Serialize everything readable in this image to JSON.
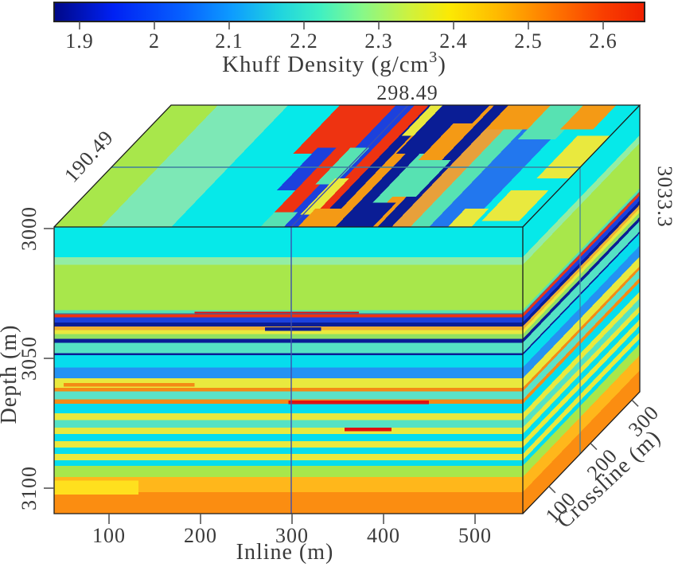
{
  "figure": {
    "background": "#ffffff"
  },
  "colorbar": {
    "title_main": "Khuff Density (g/cm",
    "title_sup": "3",
    "title_end": ")",
    "ticks": [
      "1.9",
      "2",
      "2.1",
      "2.2",
      "2.3",
      "2.4",
      "2.5",
      "2.6"
    ],
    "gradient": [
      [
        0.0,
        "#000887"
      ],
      [
        0.1,
        "#0021f3"
      ],
      [
        0.22,
        "#0762ff"
      ],
      [
        0.3,
        "#0d9bff"
      ],
      [
        0.38,
        "#1fd3e0"
      ],
      [
        0.45,
        "#3ff0c3"
      ],
      [
        0.52,
        "#85f88b"
      ],
      [
        0.6,
        "#cdf23f"
      ],
      [
        0.67,
        "#fce903"
      ],
      [
        0.75,
        "#ffba00"
      ],
      [
        0.84,
        "#ff7a00"
      ],
      [
        0.93,
        "#f93e00"
      ],
      [
        1.0,
        "#ef2000"
      ]
    ]
  },
  "annotations": {
    "inline_slice": "298.49",
    "crossline_slice": "190.49",
    "depth_slice": "3033.3",
    "color": "#4d55dd"
  },
  "axes": {
    "depth": {
      "label": "Depth (m)",
      "ticks": [
        "3000",
        "3050",
        "3100"
      ]
    },
    "inline": {
      "label": "Inline (m)",
      "ticks": [
        "100",
        "200",
        "300",
        "400",
        "500"
      ]
    },
    "crossline": {
      "label": "Crossline (m)",
      "ticks": [
        "100",
        "200",
        "300"
      ]
    }
  },
  "chart_data": {
    "type": "heatmap",
    "subtype": "3d-volume-cube-slices",
    "title": "Khuff Density (g/cm3)",
    "colormap": "jet",
    "legend_position": "top",
    "grid": false,
    "colorbar_range": [
      1.87,
      2.65
    ],
    "colorbar_ticks": [
      1.9,
      2,
      2.1,
      2.2,
      2.3,
      2.4,
      2.5,
      2.6
    ],
    "axis_ranges": {
      "depth_m": [
        3000,
        3110
      ],
      "inline_m": [
        40,
        550
      ],
      "crossline_m": [
        37,
        319
      ]
    },
    "axis_ticks": {
      "depth_m": [
        3000,
        3050,
        3100
      ],
      "inline_m": [
        100,
        200,
        300,
        400,
        500
      ],
      "crossline_m": [
        100,
        200,
        300
      ]
    },
    "slice_markers": {
      "inline_m": 298.49,
      "crossline_m": 190.49,
      "depth_m": 3033.3
    },
    "faces": {
      "front": {
        "stripe_axis": "depth",
        "stripes": [
          [
            0.0,
            "#06e9e9"
          ],
          [
            0.105,
            "#93eda4"
          ],
          [
            0.132,
            "#a8e74b"
          ],
          [
            0.29,
            "#57e2b2"
          ],
          [
            0.301,
            "#ee3311"
          ],
          [
            0.315,
            "#1c41dd"
          ],
          [
            0.333,
            "#0a1d95"
          ],
          [
            0.347,
            "#f0b032"
          ],
          [
            0.36,
            "#e9e93e"
          ],
          [
            0.374,
            "#8fe164"
          ],
          [
            0.39,
            "#0a1d95"
          ],
          [
            0.404,
            "#55e2c4"
          ],
          [
            0.44,
            "#0a1d95"
          ],
          [
            0.447,
            "#06dded"
          ],
          [
            0.49,
            "#2492f2"
          ],
          [
            0.528,
            "#e9e93e"
          ],
          [
            0.561,
            "#f48b15"
          ],
          [
            0.573,
            "#5ae2c9"
          ],
          [
            0.602,
            "#f48b15"
          ],
          [
            0.617,
            "#06dded"
          ],
          [
            0.65,
            "#e9e93e"
          ],
          [
            0.674,
            "#55e2c4"
          ],
          [
            0.7,
            "#e9e93e"
          ],
          [
            0.722,
            "#06dded"
          ],
          [
            0.747,
            "#e9e93e"
          ],
          [
            0.769,
            "#06dded"
          ],
          [
            0.792,
            "#e9e93e"
          ],
          [
            0.814,
            "#06dded"
          ],
          [
            0.833,
            "#a8e74b"
          ],
          [
            0.872,
            "#ffb71b"
          ],
          [
            0.925,
            "#fb8d11"
          ],
          [
            1.0,
            null
          ]
        ],
        "patches": [
          [
            0.5,
            0.605,
            0.3,
            0.013,
            "#e01010"
          ],
          [
            0.45,
            0.35,
            0.12,
            0.013,
            "#0a1d95"
          ],
          [
            0.02,
            0.545,
            0.28,
            0.012,
            "#f48b15"
          ],
          [
            0.62,
            0.7,
            0.1,
            0.012,
            "#e01010"
          ],
          [
            0.0,
            0.885,
            0.18,
            0.048,
            "#ffe01e"
          ],
          [
            0.3,
            0.296,
            0.35,
            0.01,
            "#e01010"
          ]
        ]
      },
      "top": {
        "stripe_axis": "inline",
        "stripes": [
          [
            0.0,
            "#a8e74b"
          ],
          [
            0.1,
            "#7de8b6"
          ],
          [
            0.25,
            "#06e9e9"
          ],
          [
            0.44,
            "#ee3311"
          ],
          [
            0.48,
            "#1c41dd"
          ],
          [
            0.52,
            "#ee3311"
          ],
          [
            0.55,
            "#0a1d95"
          ],
          [
            0.575,
            "#f49a15"
          ],
          [
            0.6,
            "#0a1d95"
          ],
          [
            0.63,
            "#57e2b2"
          ],
          [
            0.66,
            "#f49a15"
          ],
          [
            0.69,
            "#0a1d95"
          ],
          [
            0.72,
            "#e8a03a"
          ],
          [
            0.76,
            "#57e2b2"
          ],
          [
            0.8,
            "#2277ee"
          ],
          [
            0.88,
            "#06e9e9"
          ],
          [
            1.0,
            null
          ]
        ],
        "patches": [
          [
            0.36,
            0.6,
            0.08,
            0.4,
            "#ee3311"
          ],
          [
            0.4,
            0.3,
            0.04,
            0.35,
            "#1c41dd"
          ],
          [
            0.47,
            0.35,
            0.04,
            0.3,
            "#57e2b2"
          ],
          [
            0.5,
            0.1,
            0.03,
            0.3,
            "#e9e93e"
          ],
          [
            0.555,
            0.75,
            0.035,
            0.25,
            "#e9e93e"
          ],
          [
            0.58,
            0.6,
            0.1,
            0.4,
            "#0a1d95"
          ],
          [
            0.52,
            0.0,
            0.08,
            0.15,
            "#f49a15"
          ],
          [
            0.44,
            0.0,
            0.05,
            0.12,
            "#57e2b2"
          ],
          [
            0.62,
            0.0,
            0.06,
            0.2,
            "#0a1d95"
          ],
          [
            0.64,
            0.55,
            0.05,
            0.3,
            "#f49a15"
          ],
          [
            0.72,
            0.8,
            0.09,
            0.2,
            "#f49a15"
          ],
          [
            0.66,
            0.25,
            0.05,
            0.3,
            "#57e2b2"
          ],
          [
            0.81,
            0.72,
            0.08,
            0.28,
            "#57e2b2"
          ],
          [
            0.88,
            0.8,
            0.07,
            0.2,
            "#f49a15"
          ],
          [
            0.93,
            0.4,
            0.07,
            0.35,
            "#e9e93e"
          ],
          [
            0.9,
            0.05,
            0.08,
            0.25,
            "#e9e93e"
          ],
          [
            0.84,
            0.0,
            0.05,
            0.15,
            "#e9e93e"
          ]
        ]
      },
      "right": {
        "stripe_axis": "depth",
        "stripes_ref": "front",
        "patches": []
      }
    }
  }
}
